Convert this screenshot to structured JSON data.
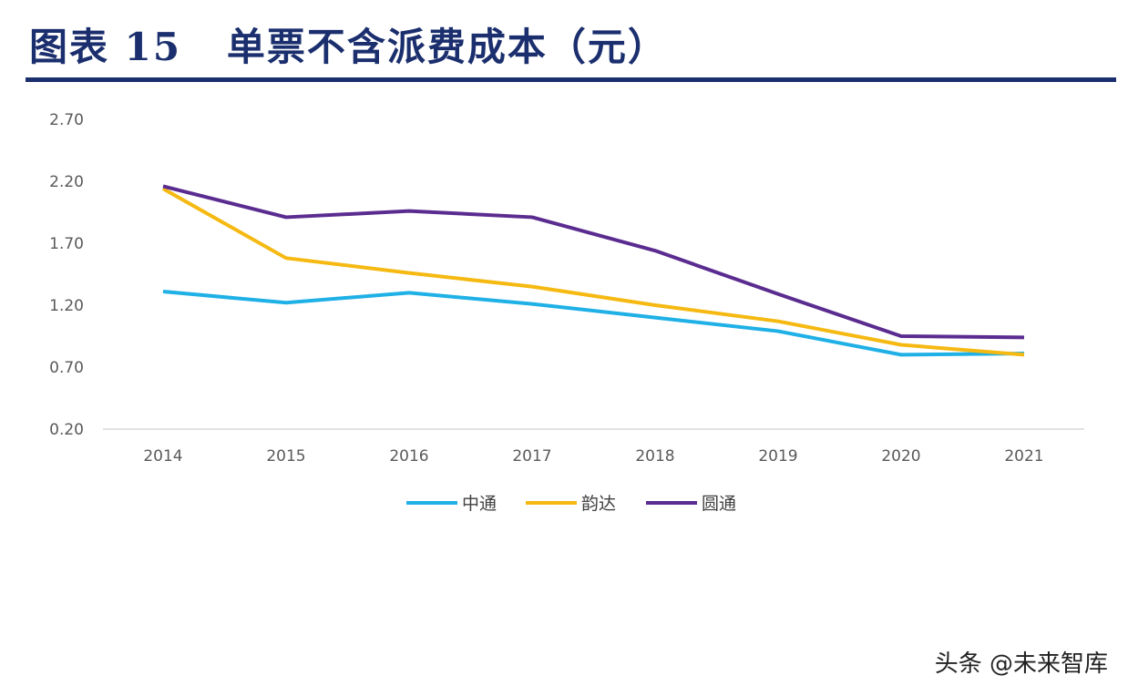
{
  "title": "图表 15   单票不含派费成本（元）",
  "watermark": "头条 @未来智库",
  "chart_data": {
    "type": "line",
    "title": "图表 15   单票不含派费成本（元）",
    "xlabel": "",
    "ylabel": "",
    "categories": [
      "2014",
      "2015",
      "2016",
      "2017",
      "2018",
      "2019",
      "2020",
      "2021"
    ],
    "ylim": [
      0.2,
      2.7
    ],
    "yticks": [
      "0.20",
      "0.70",
      "1.20",
      "1.70",
      "2.20",
      "2.70"
    ],
    "grid": false,
    "legend": "bottom",
    "series": [
      {
        "name": "中通",
        "color": "#1fb0e6",
        "values": [
          1.31,
          1.22,
          1.3,
          1.21,
          1.1,
          0.99,
          0.8,
          0.81
        ]
      },
      {
        "name": "韵达",
        "color": "#f5b912",
        "values": [
          2.14,
          1.58,
          1.46,
          1.35,
          1.2,
          1.07,
          0.88,
          0.8
        ]
      },
      {
        "name": "圆通",
        "color": "#5b2c90",
        "values": [
          2.16,
          1.91,
          1.96,
          1.91,
          1.64,
          1.29,
          0.95,
          0.94
        ]
      }
    ]
  }
}
